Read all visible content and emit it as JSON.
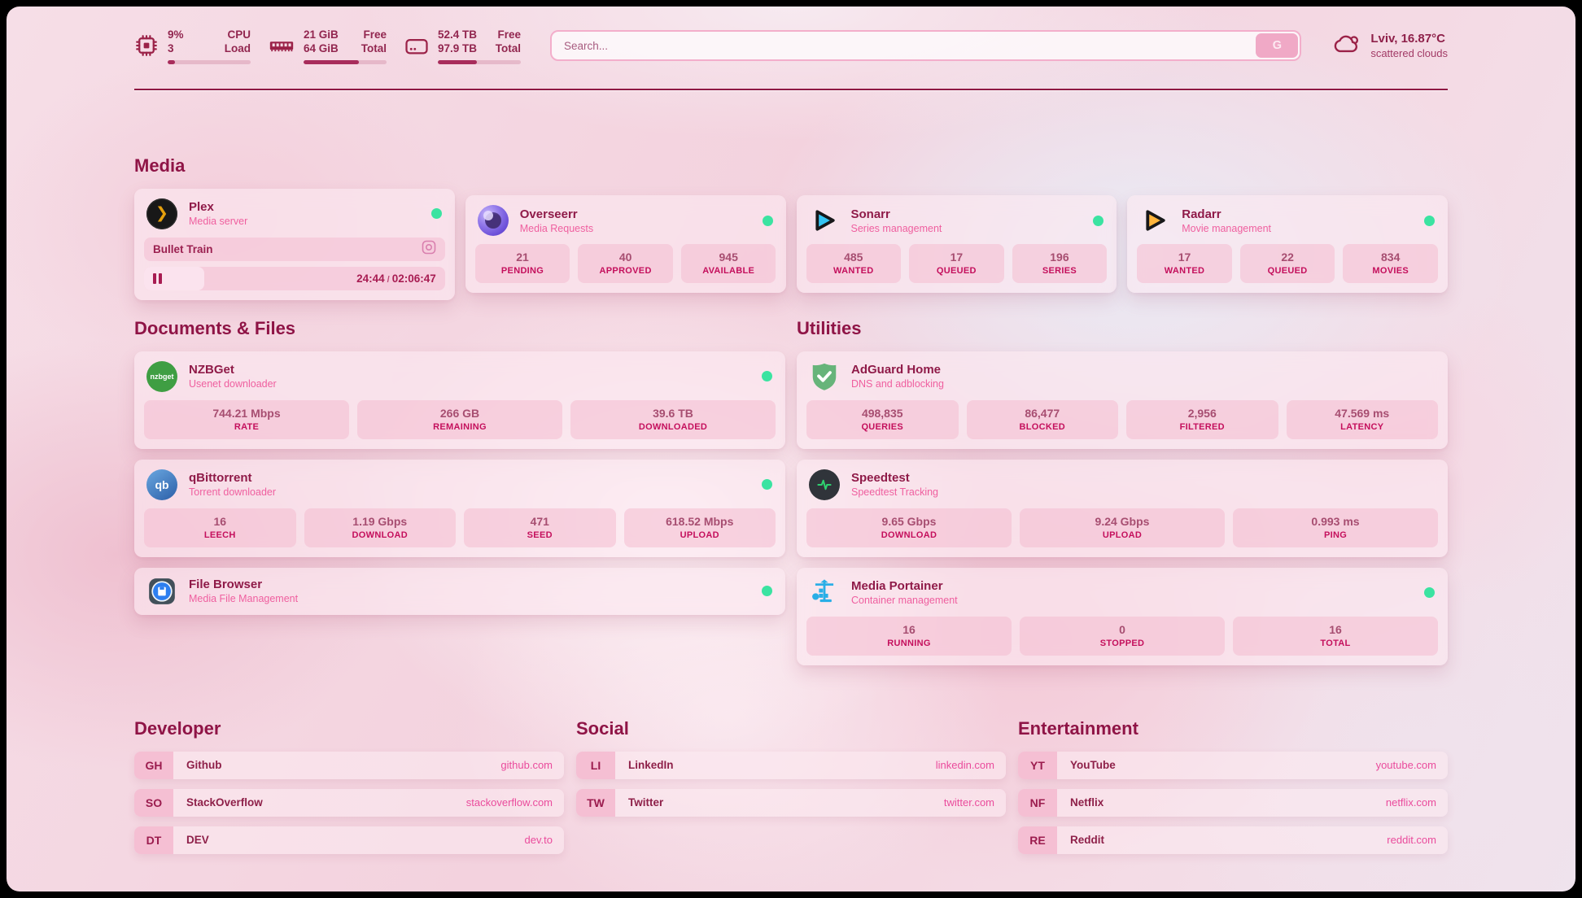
{
  "colors": {
    "accent": "#8f1446",
    "pink": "#ef5f9f",
    "status_online": "#3be3a1",
    "divider": "#8e1843"
  },
  "header": {
    "stats": [
      {
        "icon": "cpu-icon",
        "value": "9%",
        "sub": "3",
        "label_top": "CPU",
        "label_bottom": "Load",
        "progress_pct": 9
      },
      {
        "icon": "ram-icon",
        "value": "21 GiB",
        "sub": "64 GiB",
        "label_top": "Free",
        "label_bottom": "Total",
        "progress_pct": 67
      },
      {
        "icon": "disk-icon",
        "value": "52.4 TB",
        "sub": "97.9 TB",
        "label_top": "Free",
        "label_bottom": "Total",
        "progress_pct": 47
      }
    ],
    "search": {
      "placeholder": "Search...",
      "engine_button": "G"
    },
    "weather": {
      "icon": "cloud-icon",
      "location": "Lviv, 16.87°C",
      "condition": "scattered clouds"
    }
  },
  "sections": {
    "media": {
      "title": "Media",
      "cards": [
        {
          "icon": "plex-icon",
          "name": "Plex",
          "description": "Media server",
          "online": true,
          "now_playing": {
            "title": "Bullet Train",
            "elapsed": "24:44",
            "separator": "/",
            "total": "02:06:47",
            "progress_pct": 20
          }
        },
        {
          "icon": "overseerr-icon",
          "name": "Overseerr",
          "description": "Media Requests",
          "online": true,
          "stats": [
            {
              "value": "21",
              "label": "PENDING"
            },
            {
              "value": "40",
              "label": "APPROVED"
            },
            {
              "value": "945",
              "label": "AVAILABLE"
            }
          ]
        },
        {
          "icon": "sonarr-icon",
          "name": "Sonarr",
          "description": "Series management",
          "online": true,
          "stats": [
            {
              "value": "485",
              "label": "WANTED"
            },
            {
              "value": "17",
              "label": "QUEUED"
            },
            {
              "value": "196",
              "label": "SERIES"
            }
          ]
        },
        {
          "icon": "radarr-icon",
          "name": "Radarr",
          "description": "Movie management",
          "online": true,
          "stats": [
            {
              "value": "17",
              "label": "WANTED"
            },
            {
              "value": "22",
              "label": "QUEUED"
            },
            {
              "value": "834",
              "label": "MOVIES"
            }
          ]
        }
      ]
    },
    "documents": {
      "title": "Documents & Files",
      "cards": [
        {
          "icon": "nzbget-icon",
          "name": "NZBGet",
          "description": "Usenet downloader",
          "online": true,
          "stats": [
            {
              "value": "744.21 Mbps",
              "label": "RATE"
            },
            {
              "value": "266 GB",
              "label": "REMAINING"
            },
            {
              "value": "39.6 TB",
              "label": "DOWNLOADED"
            }
          ]
        },
        {
          "icon": "qbittorrent-icon",
          "name": "qBittorrent",
          "description": "Torrent downloader",
          "online": true,
          "stats": [
            {
              "value": "16",
              "label": "LEECH"
            },
            {
              "value": "1.19 Gbps",
              "label": "DOWNLOAD"
            },
            {
              "value": "471",
              "label": "SEED"
            },
            {
              "value": "618.52 Mbps",
              "label": "UPLOAD"
            }
          ]
        },
        {
          "icon": "filebrowser-icon",
          "name": "File Browser",
          "description": "Media File Management",
          "online": true
        }
      ]
    },
    "utilities": {
      "title": "Utilities",
      "cards": [
        {
          "icon": "adguard-icon",
          "name": "AdGuard Home",
          "description": "DNS and adblocking",
          "stats": [
            {
              "value": "498,835",
              "label": "QUERIES"
            },
            {
              "value": "86,477",
              "label": "BLOCKED"
            },
            {
              "value": "2,956",
              "label": "FILTERED"
            },
            {
              "value": "47.569 ms",
              "label": "LATENCY"
            }
          ]
        },
        {
          "icon": "speedtest-icon",
          "name": "Speedtest",
          "description": "Speedtest Tracking",
          "stats": [
            {
              "value": "9.65 Gbps",
              "label": "DOWNLOAD"
            },
            {
              "value": "9.24 Gbps",
              "label": "UPLOAD"
            },
            {
              "value": "0.993 ms",
              "label": "PING"
            }
          ]
        },
        {
          "icon": "portainer-icon",
          "name": "Media Portainer",
          "description": "Container management",
          "online": true,
          "stats": [
            {
              "value": "16",
              "label": "RUNNING"
            },
            {
              "value": "0",
              "label": "STOPPED"
            },
            {
              "value": "16",
              "label": "TOTAL"
            }
          ]
        }
      ]
    }
  },
  "bookmarks": [
    {
      "title": "Developer",
      "items": [
        {
          "abbr": "GH",
          "name": "Github",
          "domain": "github.com"
        },
        {
          "abbr": "SO",
          "name": "StackOverflow",
          "domain": "stackoverflow.com"
        },
        {
          "abbr": "DT",
          "name": "DEV",
          "domain": "dev.to"
        }
      ]
    },
    {
      "title": "Social",
      "items": [
        {
          "abbr": "LI",
          "name": "LinkedIn",
          "domain": "linkedin.com"
        },
        {
          "abbr": "TW",
          "name": "Twitter",
          "domain": "twitter.com"
        }
      ]
    },
    {
      "title": "Entertainment",
      "items": [
        {
          "abbr": "YT",
          "name": "YouTube",
          "domain": "youtube.com"
        },
        {
          "abbr": "NF",
          "name": "Netflix",
          "domain": "netflix.com"
        },
        {
          "abbr": "RE",
          "name": "Reddit",
          "domain": "reddit.com"
        }
      ]
    }
  ]
}
